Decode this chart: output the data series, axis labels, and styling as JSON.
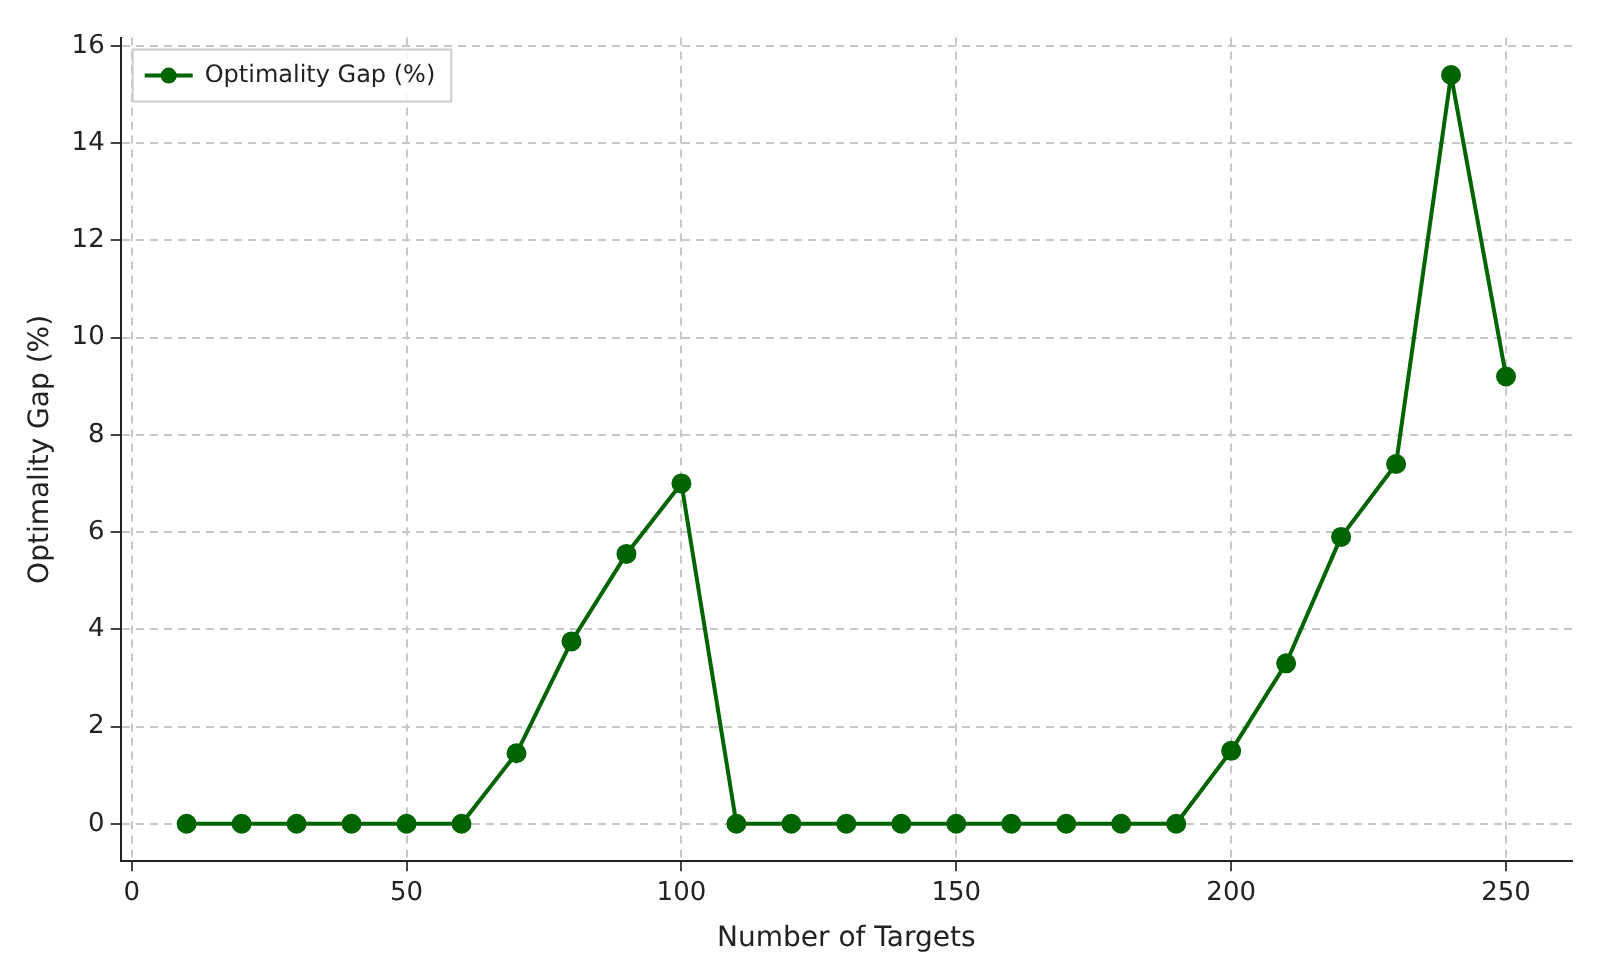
{
  "chart_data": {
    "type": "line",
    "xlabel": "Number of Targets",
    "ylabel": "Optimality Gap (%)",
    "x": [
      10,
      20,
      30,
      40,
      50,
      60,
      70,
      80,
      90,
      100,
      110,
      120,
      130,
      140,
      150,
      160,
      170,
      180,
      190,
      200,
      210,
      220,
      230,
      240,
      250
    ],
    "series": [
      {
        "name": "Optimality Gap (%)",
        "color": "#006400",
        "values": [
          0,
          0,
          0,
          0,
          0,
          0,
          1.45,
          3.75,
          5.55,
          7.0,
          0,
          0,
          0,
          0,
          0,
          0,
          0,
          0,
          0,
          1.5,
          3.3,
          5.9,
          7.4,
          15.4,
          9.2
        ]
      }
    ],
    "xlim": [
      -2,
      262
    ],
    "xticks": [
      0,
      50,
      100,
      150,
      200,
      250
    ],
    "ylim": [
      -0.77,
      16.17
    ],
    "yticks": [
      0,
      2,
      4,
      6,
      8,
      10,
      12,
      14,
      16
    ],
    "grid": true,
    "legend": "top left",
    "marker": "circle",
    "line_style": "solid"
  }
}
